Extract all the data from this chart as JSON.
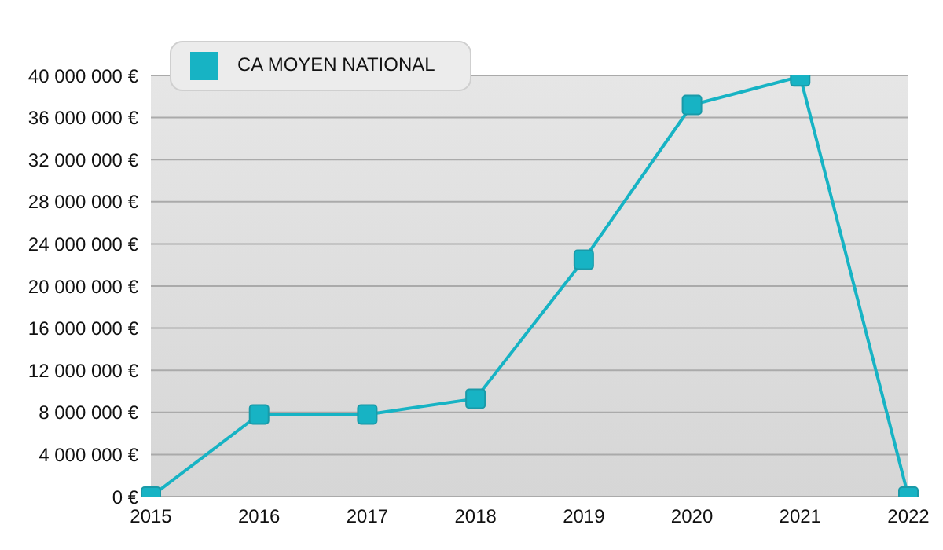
{
  "chart_data": {
    "type": "line",
    "categories": [
      "2015",
      "2016",
      "2017",
      "2018",
      "2019",
      "2020",
      "2021",
      "2022"
    ],
    "series": [
      {
        "name": "CA MOYEN NATIONAL",
        "color": "#17b3c4",
        "values": [
          0,
          7800000,
          7800000,
          9300000,
          22500000,
          37200000,
          39900000,
          0
        ]
      }
    ],
    "ylim": [
      0,
      40000000
    ],
    "yticks": [
      {
        "value": 0,
        "label": "0 €"
      },
      {
        "value": 4000000,
        "label": "4 000 000 €"
      },
      {
        "value": 8000000,
        "label": "8 000 000 €"
      },
      {
        "value": 12000000,
        "label": "12 000 000 €"
      },
      {
        "value": 16000000,
        "label": "16 000 000 €"
      },
      {
        "value": 20000000,
        "label": "20 000 000 €"
      },
      {
        "value": 24000000,
        "label": "24 000 000 €"
      },
      {
        "value": 28000000,
        "label": "28 000 000 €"
      },
      {
        "value": 32000000,
        "label": "32 000 000 €"
      },
      {
        "value": 36000000,
        "label": "36 000 000 €"
      },
      {
        "value": 40000000,
        "label": "40 000 000 €"
      }
    ],
    "grid": "y",
    "legend": "top left",
    "marker": "square",
    "line_style": "solid"
  }
}
